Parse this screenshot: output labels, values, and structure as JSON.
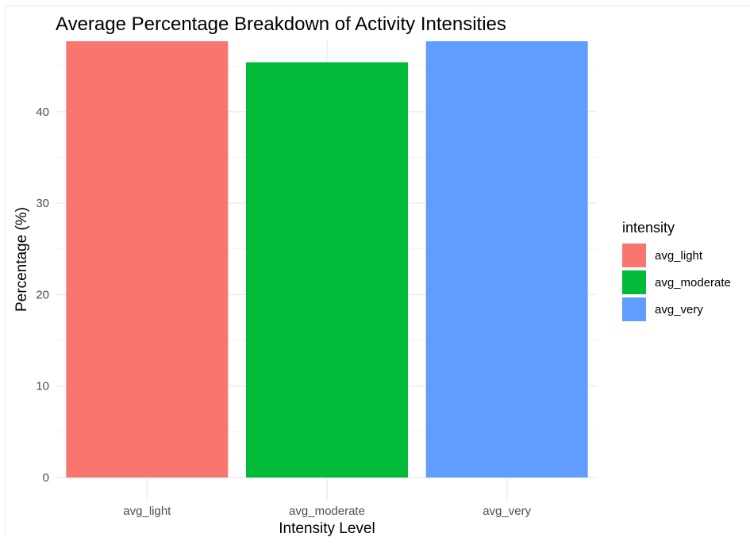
{
  "chart_data": {
    "type": "bar",
    "title": "Average Percentage Breakdown of Activity Intensities",
    "xlabel": "Intensity Level",
    "ylabel": "Percentage (%)",
    "categories": [
      "avg_light",
      "avg_moderate",
      "avg_very"
    ],
    "values": [
      47.7,
      45.4,
      47.7
    ],
    "ylim": [
      0,
      47.7
    ],
    "yticks": [
      0,
      10,
      20,
      30,
      40
    ],
    "grid": true,
    "legend": {
      "title": "intensity",
      "position": "right",
      "entries": [
        "avg_light",
        "avg_moderate",
        "avg_very"
      ]
    },
    "colors": [
      "#F8766D",
      "#00BA38",
      "#619CFF"
    ]
  }
}
